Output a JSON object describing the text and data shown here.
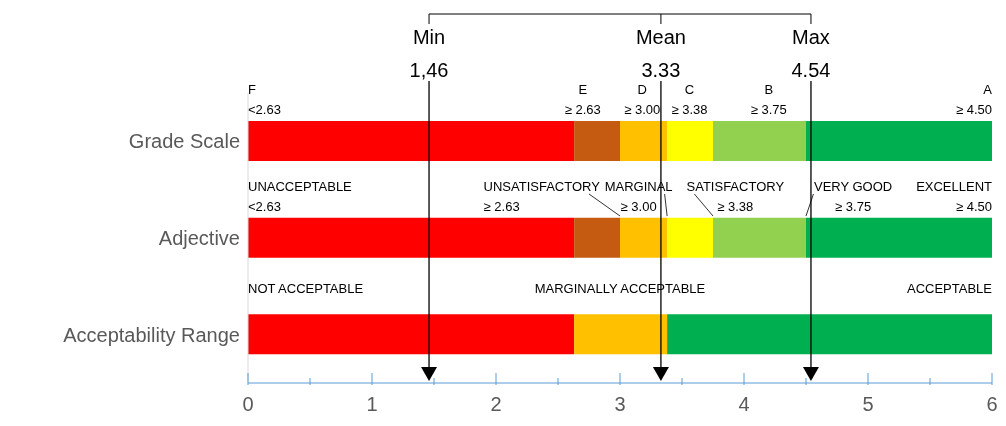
{
  "chart_data": {
    "type": "bar",
    "orientation": "horizontal",
    "stacked": true,
    "categories": [
      "Grade Scale",
      "Adjective",
      "Acceptability Range"
    ],
    "series": [
      {
        "colors": [
          "#ff0000",
          "#ff0000",
          "#ff0000"
        ],
        "values": [
          2.63,
          2.63,
          2.63
        ]
      },
      {
        "colors": [
          "#c55a11",
          "#c55a11",
          "#ffc000"
        ],
        "values": [
          0.37,
          0.37,
          0.75
        ]
      },
      {
        "colors": [
          "#ffc000",
          "#ffc000",
          "#ffc000"
        ],
        "values": [
          0.38,
          0.38,
          0
        ]
      },
      {
        "colors": [
          "#ffff00",
          "#ffff00",
          "#ffff00"
        ],
        "values": [
          0.37,
          0.37,
          0
        ]
      },
      {
        "colors": [
          "#92d050",
          "#92d050",
          "#92d050"
        ],
        "values": [
          0.75,
          0.75,
          0
        ]
      },
      {
        "colors": [
          "#00b050",
          "#00b050",
          "#00b050"
        ],
        "values": [
          1.5,
          1.5,
          2.62
        ]
      }
    ],
    "xlim": [
      0,
      6
    ],
    "xticks": [
      0,
      {
        "value": 0.5,
        "label": null
      },
      1,
      {
        "value": 1.5,
        "label": null
      },
      2,
      {
        "value": 2.5,
        "label": null
      },
      3,
      {
        "value": 3.5,
        "label": null
      },
      4,
      {
        "value": 4.5,
        "label": null
      },
      5,
      {
        "value": 5.5,
        "label": null
      },
      6
    ],
    "ref_lines": [
      {
        "axis": "x",
        "value": 1.46,
        "label": "Min\n1,46",
        "color": "#000000"
      },
      {
        "axis": "x",
        "value": 3.33,
        "label": "Mean\n3.33",
        "color": "#000000"
      },
      {
        "axis": "x",
        "value": 4.54,
        "label": "Max\n4.54",
        "color": "#000000"
      }
    ],
    "annotations": [
      "F\n<2.63",
      "E\n≥ 2.63",
      "D\n≥ 3.00",
      "C\n≥ 3.38",
      "B\n≥ 3.75",
      "A\n≥ 4.50",
      "UNACCEPTABLE\n<2.63",
      {
        "text": "UNSATISFACTORY\n≥ 2.63",
        "x": 3.0,
        "y": "Adjective"
      },
      {
        "text": "MARGINAL\n≥ 3.00",
        "x": 3.38,
        "y": "Adjective"
      },
      {
        "text": "SATISFACTORY\n≥ 3.38",
        "x": 3.75,
        "y": "Adjective"
      },
      {
        "text": "VERY GOOD\n≥ 3.75",
        "x": 4.5,
        "y": "Adjective"
      },
      "EXCELLENT\n≥ 4.50",
      "NOT ACCEPTABLE",
      "MARGINALLY ACCEPTABLE",
      "ACCEPTABLE"
    ]
  }
}
